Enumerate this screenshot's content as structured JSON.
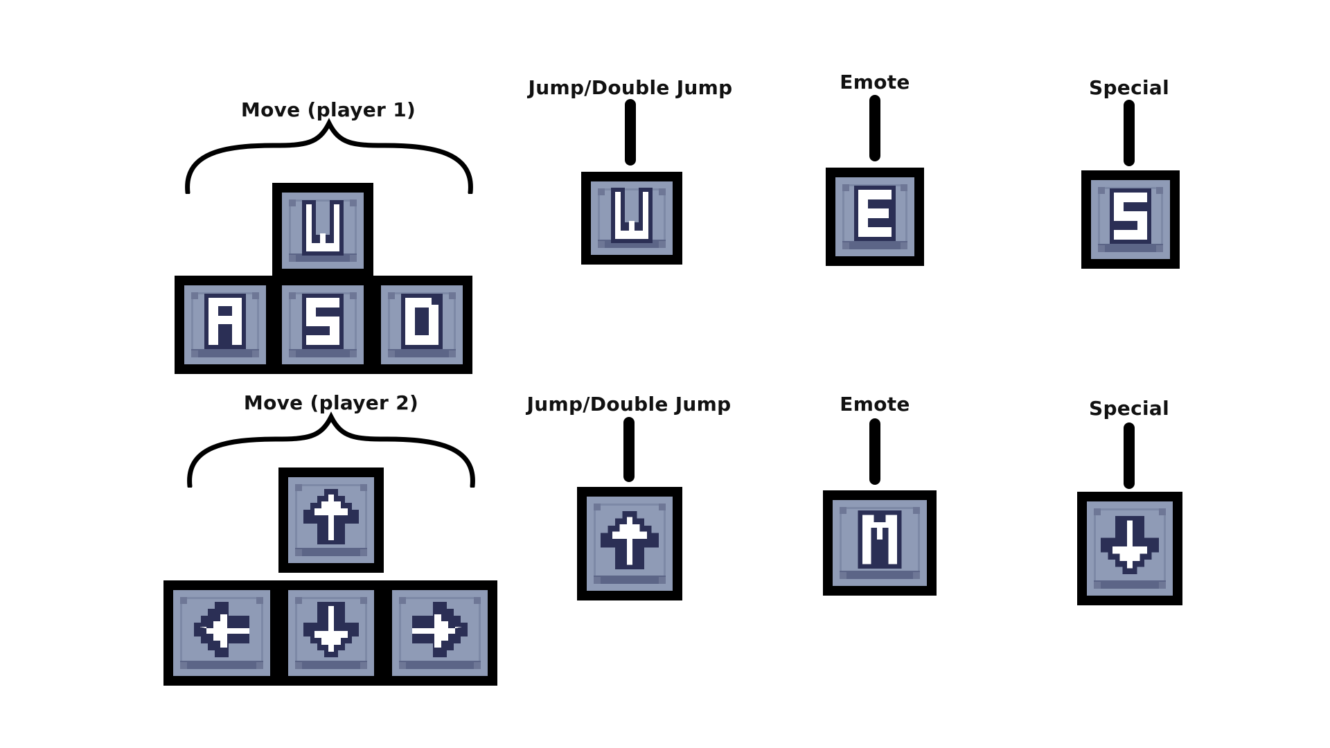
{
  "rows": [
    {
      "move_label": "Move (player 1)",
      "actions": [
        {
          "label": "Jump/Double Jump",
          "key": "W",
          "icon": "letter-w"
        },
        {
          "label": "Emote",
          "key": "E",
          "icon": "letter-e"
        },
        {
          "label": "Special",
          "key": "S",
          "icon": "letter-s"
        }
      ],
      "move_keys": [
        "W",
        "A",
        "S",
        "D"
      ]
    },
    {
      "move_label": "Move (player 2)",
      "actions": [
        {
          "label": "Jump/Double Jump",
          "key": "Up",
          "icon": "arrow-up"
        },
        {
          "label": "Emote",
          "key": "M",
          "icon": "letter-m"
        },
        {
          "label": "Special",
          "key": "Down",
          "icon": "arrow-down"
        }
      ],
      "move_keys": [
        "Up",
        "Left",
        "Down",
        "Right"
      ]
    }
  ],
  "colors": {
    "key_face": "#8f9bb6",
    "key_shadow": "#5c6587",
    "glyph_outline": "#2b2f55",
    "glyph_fill": "#ffffff",
    "border": "#000000"
  }
}
